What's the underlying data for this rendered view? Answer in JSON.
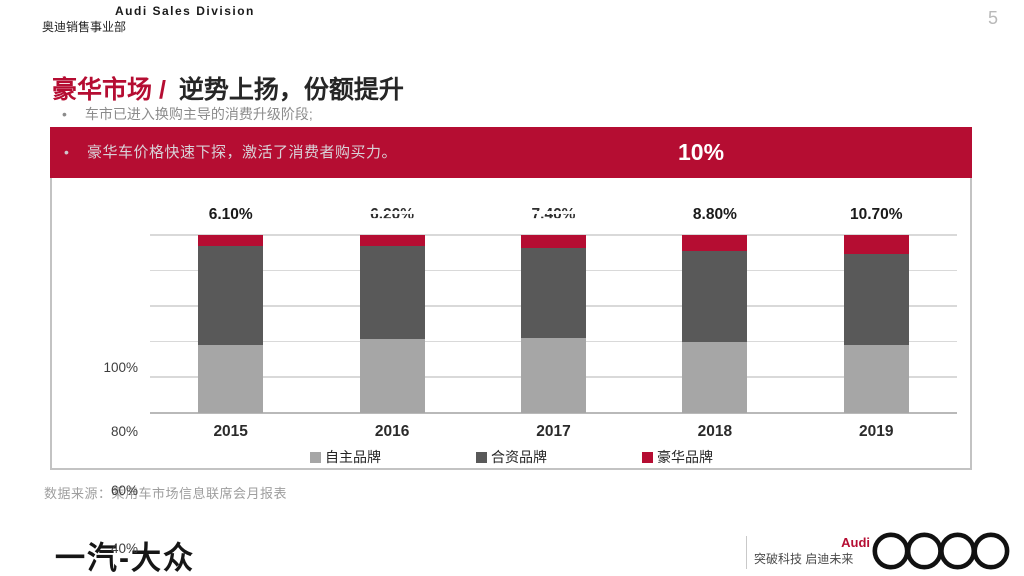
{
  "header": {
    "brand_en": "Audi Sales Division",
    "brand_cn": "奥迪销售事业部",
    "page_number": "5"
  },
  "title": {
    "highlight": "豪华市场 /",
    "rest": "逆势上扬，份额提升"
  },
  "bullets": {
    "first": "车市已进入换购主导的消费升级阶段;",
    "banner": "豪华车价格快速下探，激活了消费者购买力。",
    "banner_stat": "10%"
  },
  "chart_data": {
    "type": "bar",
    "stacked": true,
    "percent_stacked": true,
    "categories": [
      "2015",
      "2016",
      "2017",
      "2018",
      "2019"
    ],
    "series": [
      {
        "name": "自主品牌",
        "color": "#a6a6a6",
        "values": [
          38.2,
          41.5,
          42.0,
          39.9,
          38.0
        ]
      },
      {
        "name": "合资品牌",
        "color": "#595959",
        "values": [
          55.7,
          52.3,
          50.6,
          51.3,
          51.3
        ]
      },
      {
        "name": "豪华品牌",
        "color": "#b50d32",
        "values": [
          6.1,
          6.2,
          7.4,
          8.8,
          10.7
        ]
      }
    ],
    "bar_labels": [
      {
        "text": "6.10%",
        "eroded": false
      },
      {
        "text": "6.20%",
        "eroded": true
      },
      {
        "text": "7.40%",
        "eroded": true
      },
      {
        "text": "8.80%",
        "eroded": false
      },
      {
        "text": "10.70%",
        "eroded": false
      }
    ],
    "y_ticks": [
      "100%",
      "80%",
      "60%",
      "40%"
    ],
    "legend_position": "bottom",
    "grid": true
  },
  "source": "数据来源：乘用车市场信息联席会月报表",
  "footer": {
    "faw_logo": "一汽-大众",
    "audi_label": "Audi",
    "slogan": "突破科技 启迪未来"
  },
  "colors": {
    "accent": "#b50d32",
    "joint_gray": "#595959",
    "domestic_gray": "#a6a6a6",
    "gridline": "#d9d9d9"
  }
}
